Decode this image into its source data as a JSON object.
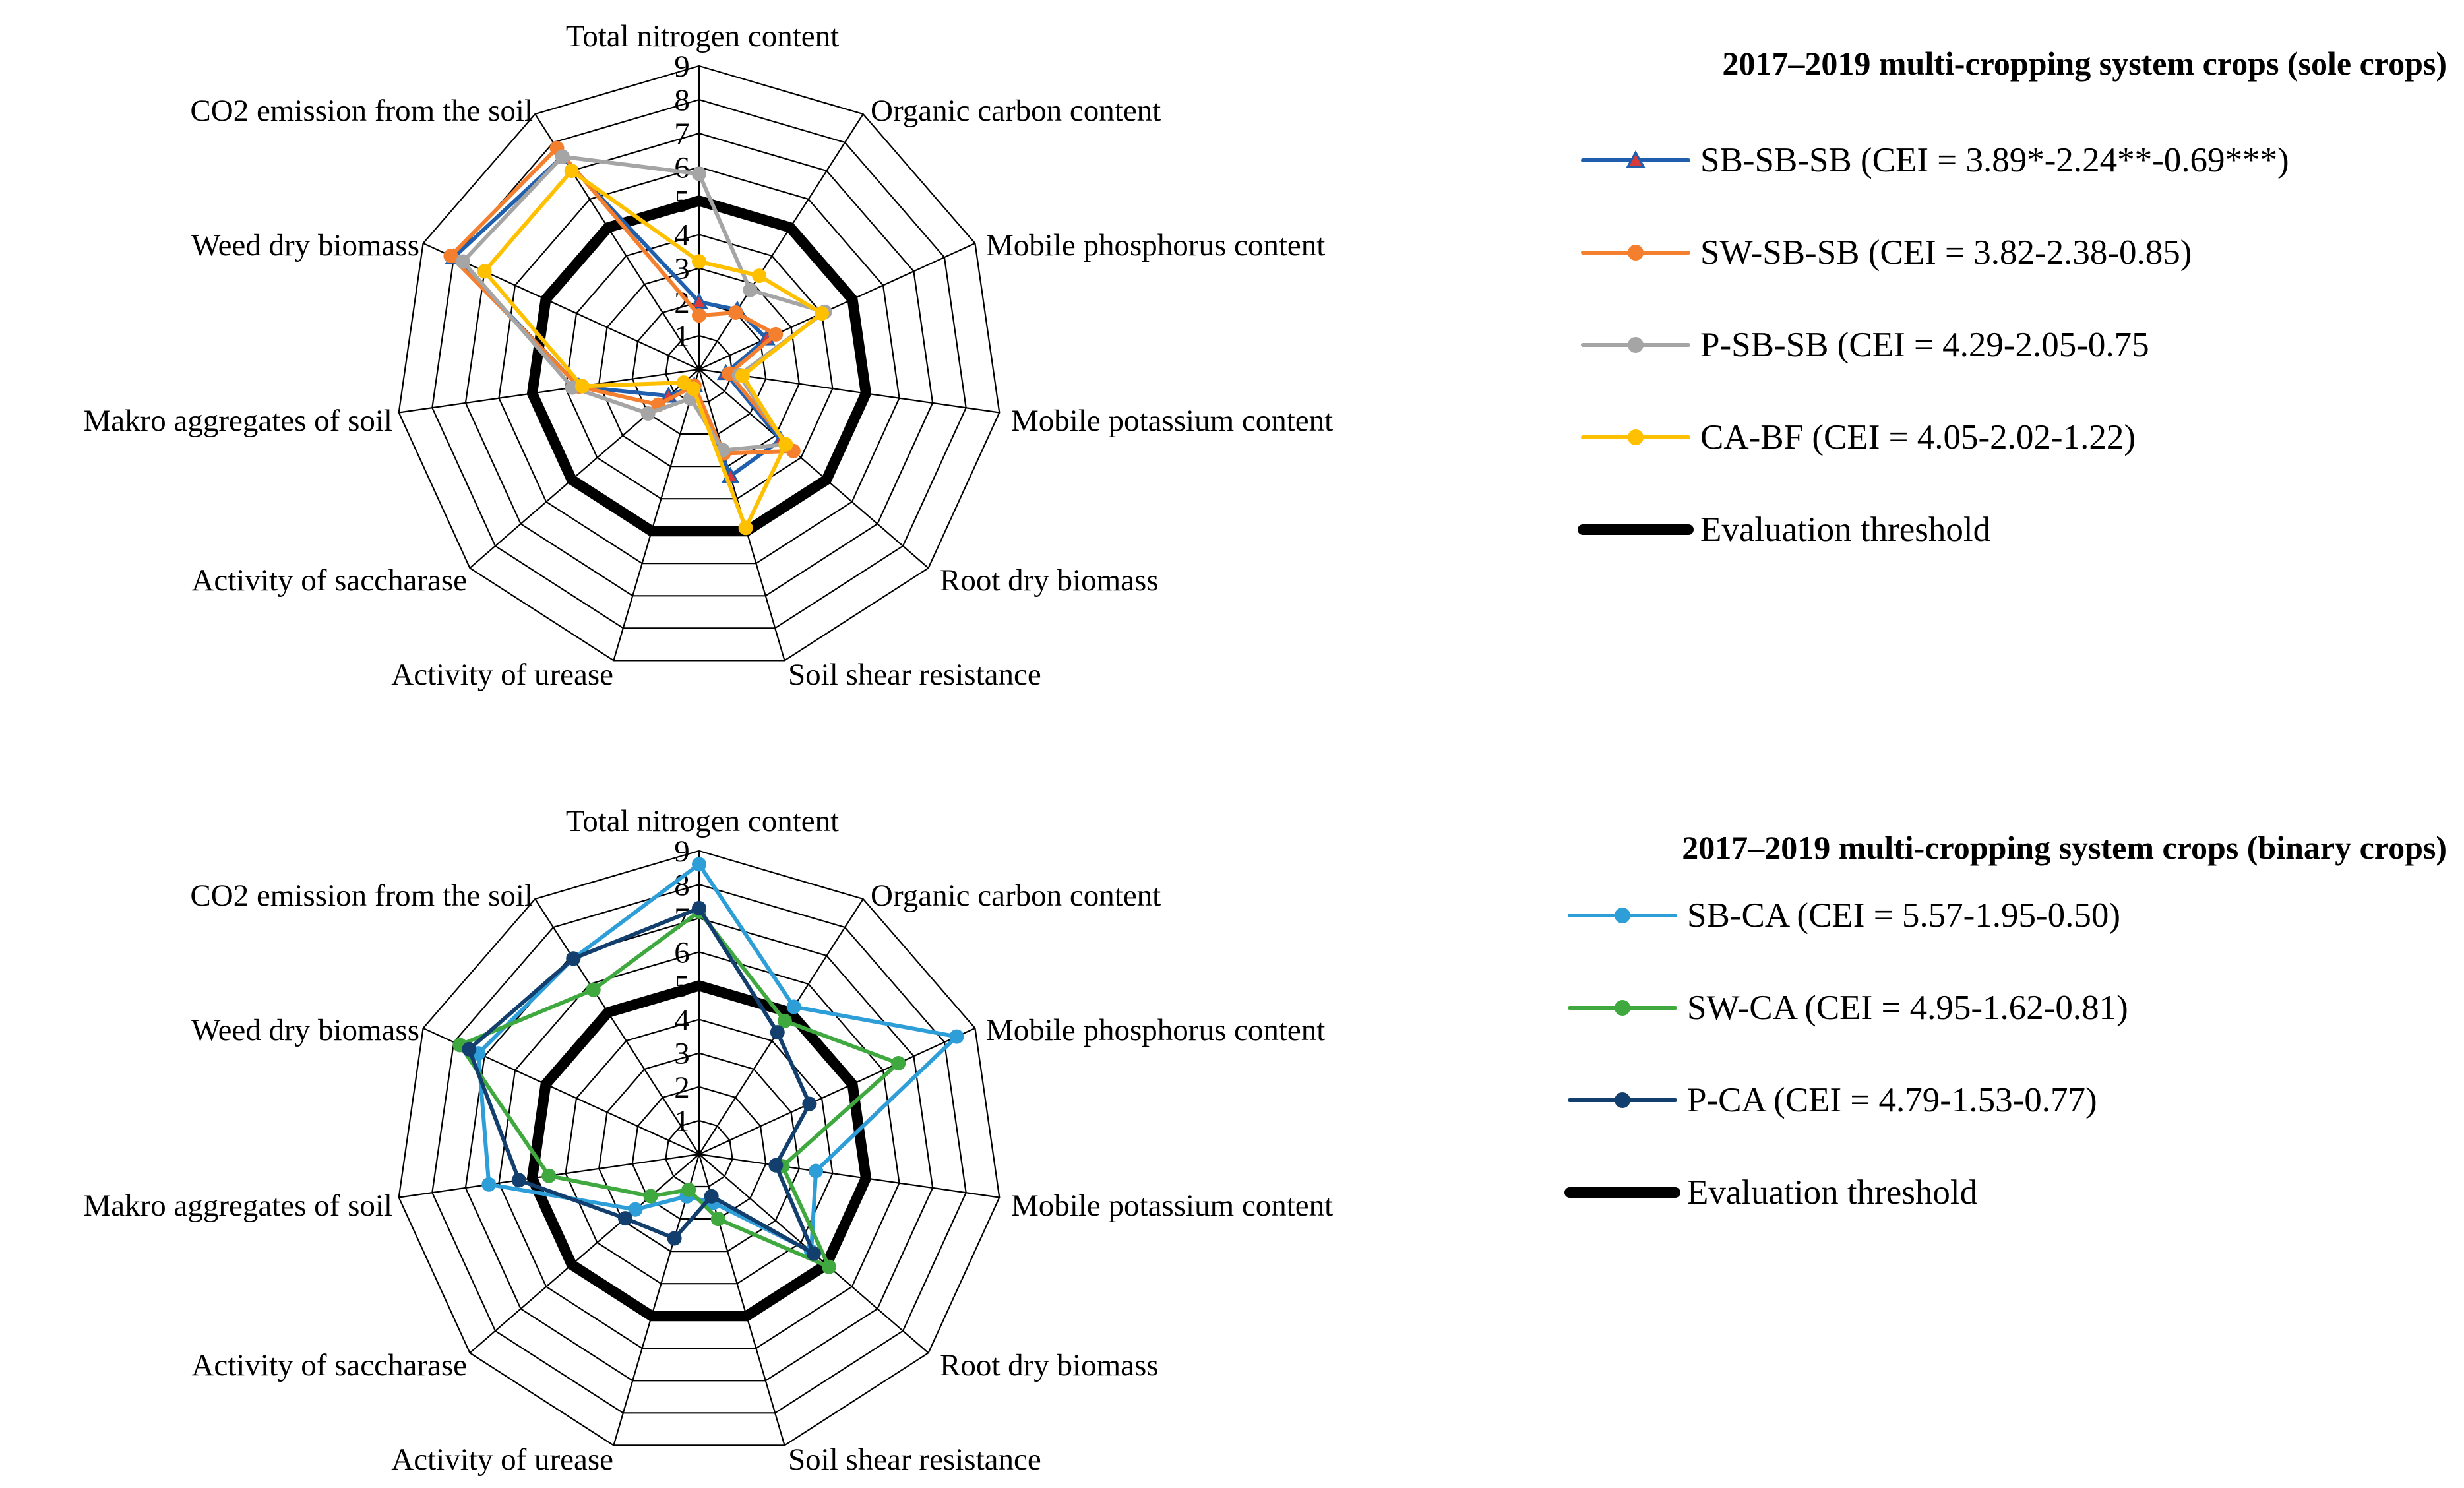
{
  "chart_data": [
    {
      "type": "radar",
      "legend_title": "2017–2019 multi-cropping system crops (sole crops)",
      "axes": [
        "Total nitrogen content",
        "Organic carbon content",
        "Mobile phosphorus content",
        "Mobile potassium content",
        "Root dry biomass",
        "Soil shear resistance",
        "Activity of urease",
        "Activity of saccharase",
        "Makro aggregates of soil",
        "Weed dry biomass",
        "CO2 emission from the soil"
      ],
      "ticks": [
        "1",
        "2",
        "3",
        "4",
        "5",
        "6",
        "7",
        "8",
        "9"
      ],
      "rlim": [
        0,
        9
      ],
      "threshold": {
        "name": "Evaluation threshold",
        "value": 5,
        "color": "#000000"
      },
      "series": [
        {
          "name": "SB-SB-SB (CEI = 3.89*-2.24**-0.69***)",
          "color": "#1f5fad",
          "marker": "triangle",
          "values": [
            2.0,
            2.1,
            2.2,
            0.8,
            3.2,
            3.3,
            0.5,
            1.2,
            3.6,
            8.0,
            7.5
          ]
        },
        {
          "name": "SW-SB-SB (CEI = 3.82-2.38-0.85)",
          "color": "#f47f2e",
          "marker": "circle",
          "values": [
            1.6,
            2.0,
            2.5,
            0.9,
            3.7,
            2.6,
            0.5,
            1.6,
            3.6,
            8.1,
            7.8
          ]
        },
        {
          "name": "P-SB-SB (CEI = 4.29-2.05-0.75",
          "color": "#a5a5a5",
          "marker": "circle",
          "values": [
            5.8,
            2.8,
            4.1,
            1.2,
            3.4,
            2.5,
            0.9,
            2.0,
            3.8,
            7.7,
            7.5
          ]
        },
        {
          "name": "CA-BF (CEI = 4.05-2.02-1.22)",
          "color": "#ffc000",
          "marker": "circle",
          "values": [
            3.2,
            3.3,
            4.0,
            1.3,
            3.4,
            4.9,
            0.6,
            0.6,
            3.5,
            7.0,
            7.0
          ]
        }
      ]
    },
    {
      "type": "radar",
      "legend_title": "2017–2019 multi-cropping system crops (binary crops)",
      "axes": [
        "Total nitrogen content",
        "Organic carbon content",
        "Mobile phosphorus content",
        "Mobile potassium content",
        "Root dry biomass",
        "Soil shear resistance",
        "Activity of urease",
        "Activity of saccharase",
        "Makro aggregates of soil",
        "Weed dry biomass",
        "CO2 emission from the soil"
      ],
      "ticks": [
        "1",
        "2",
        "3",
        "4",
        "5",
        "6",
        "7",
        "8",
        "9"
      ],
      "rlim": [
        0,
        9
      ],
      "threshold": {
        "name": "Evaluation threshold",
        "value": 5,
        "color": "#000000"
      },
      "series": [
        {
          "name": "SB-CA (CEI = 5.57-1.95-0.50)",
          "color": "#2e9ed8",
          "marker": "circle",
          "values": [
            8.6,
            5.2,
            8.4,
            3.5,
            4.4,
            1.5,
            1.3,
            2.5,
            6.3,
            7.2,
            6.9
          ]
        },
        {
          "name": "SW-CA (CEI = 4.95-1.62-0.81)",
          "color": "#3fa83f",
          "marker": "circle",
          "values": [
            7.2,
            4.7,
            6.5,
            2.5,
            5.1,
            2.0,
            1.1,
            1.9,
            4.5,
            7.8,
            5.8
          ]
        },
        {
          "name": "P-CA (CEI = 4.79-1.53-0.77)",
          "color": "#123f6e",
          "marker": "circle",
          "values": [
            7.3,
            4.3,
            3.6,
            2.3,
            4.5,
            1.3,
            2.6,
            2.9,
            5.4,
            7.5,
            6.9
          ]
        }
      ]
    }
  ]
}
